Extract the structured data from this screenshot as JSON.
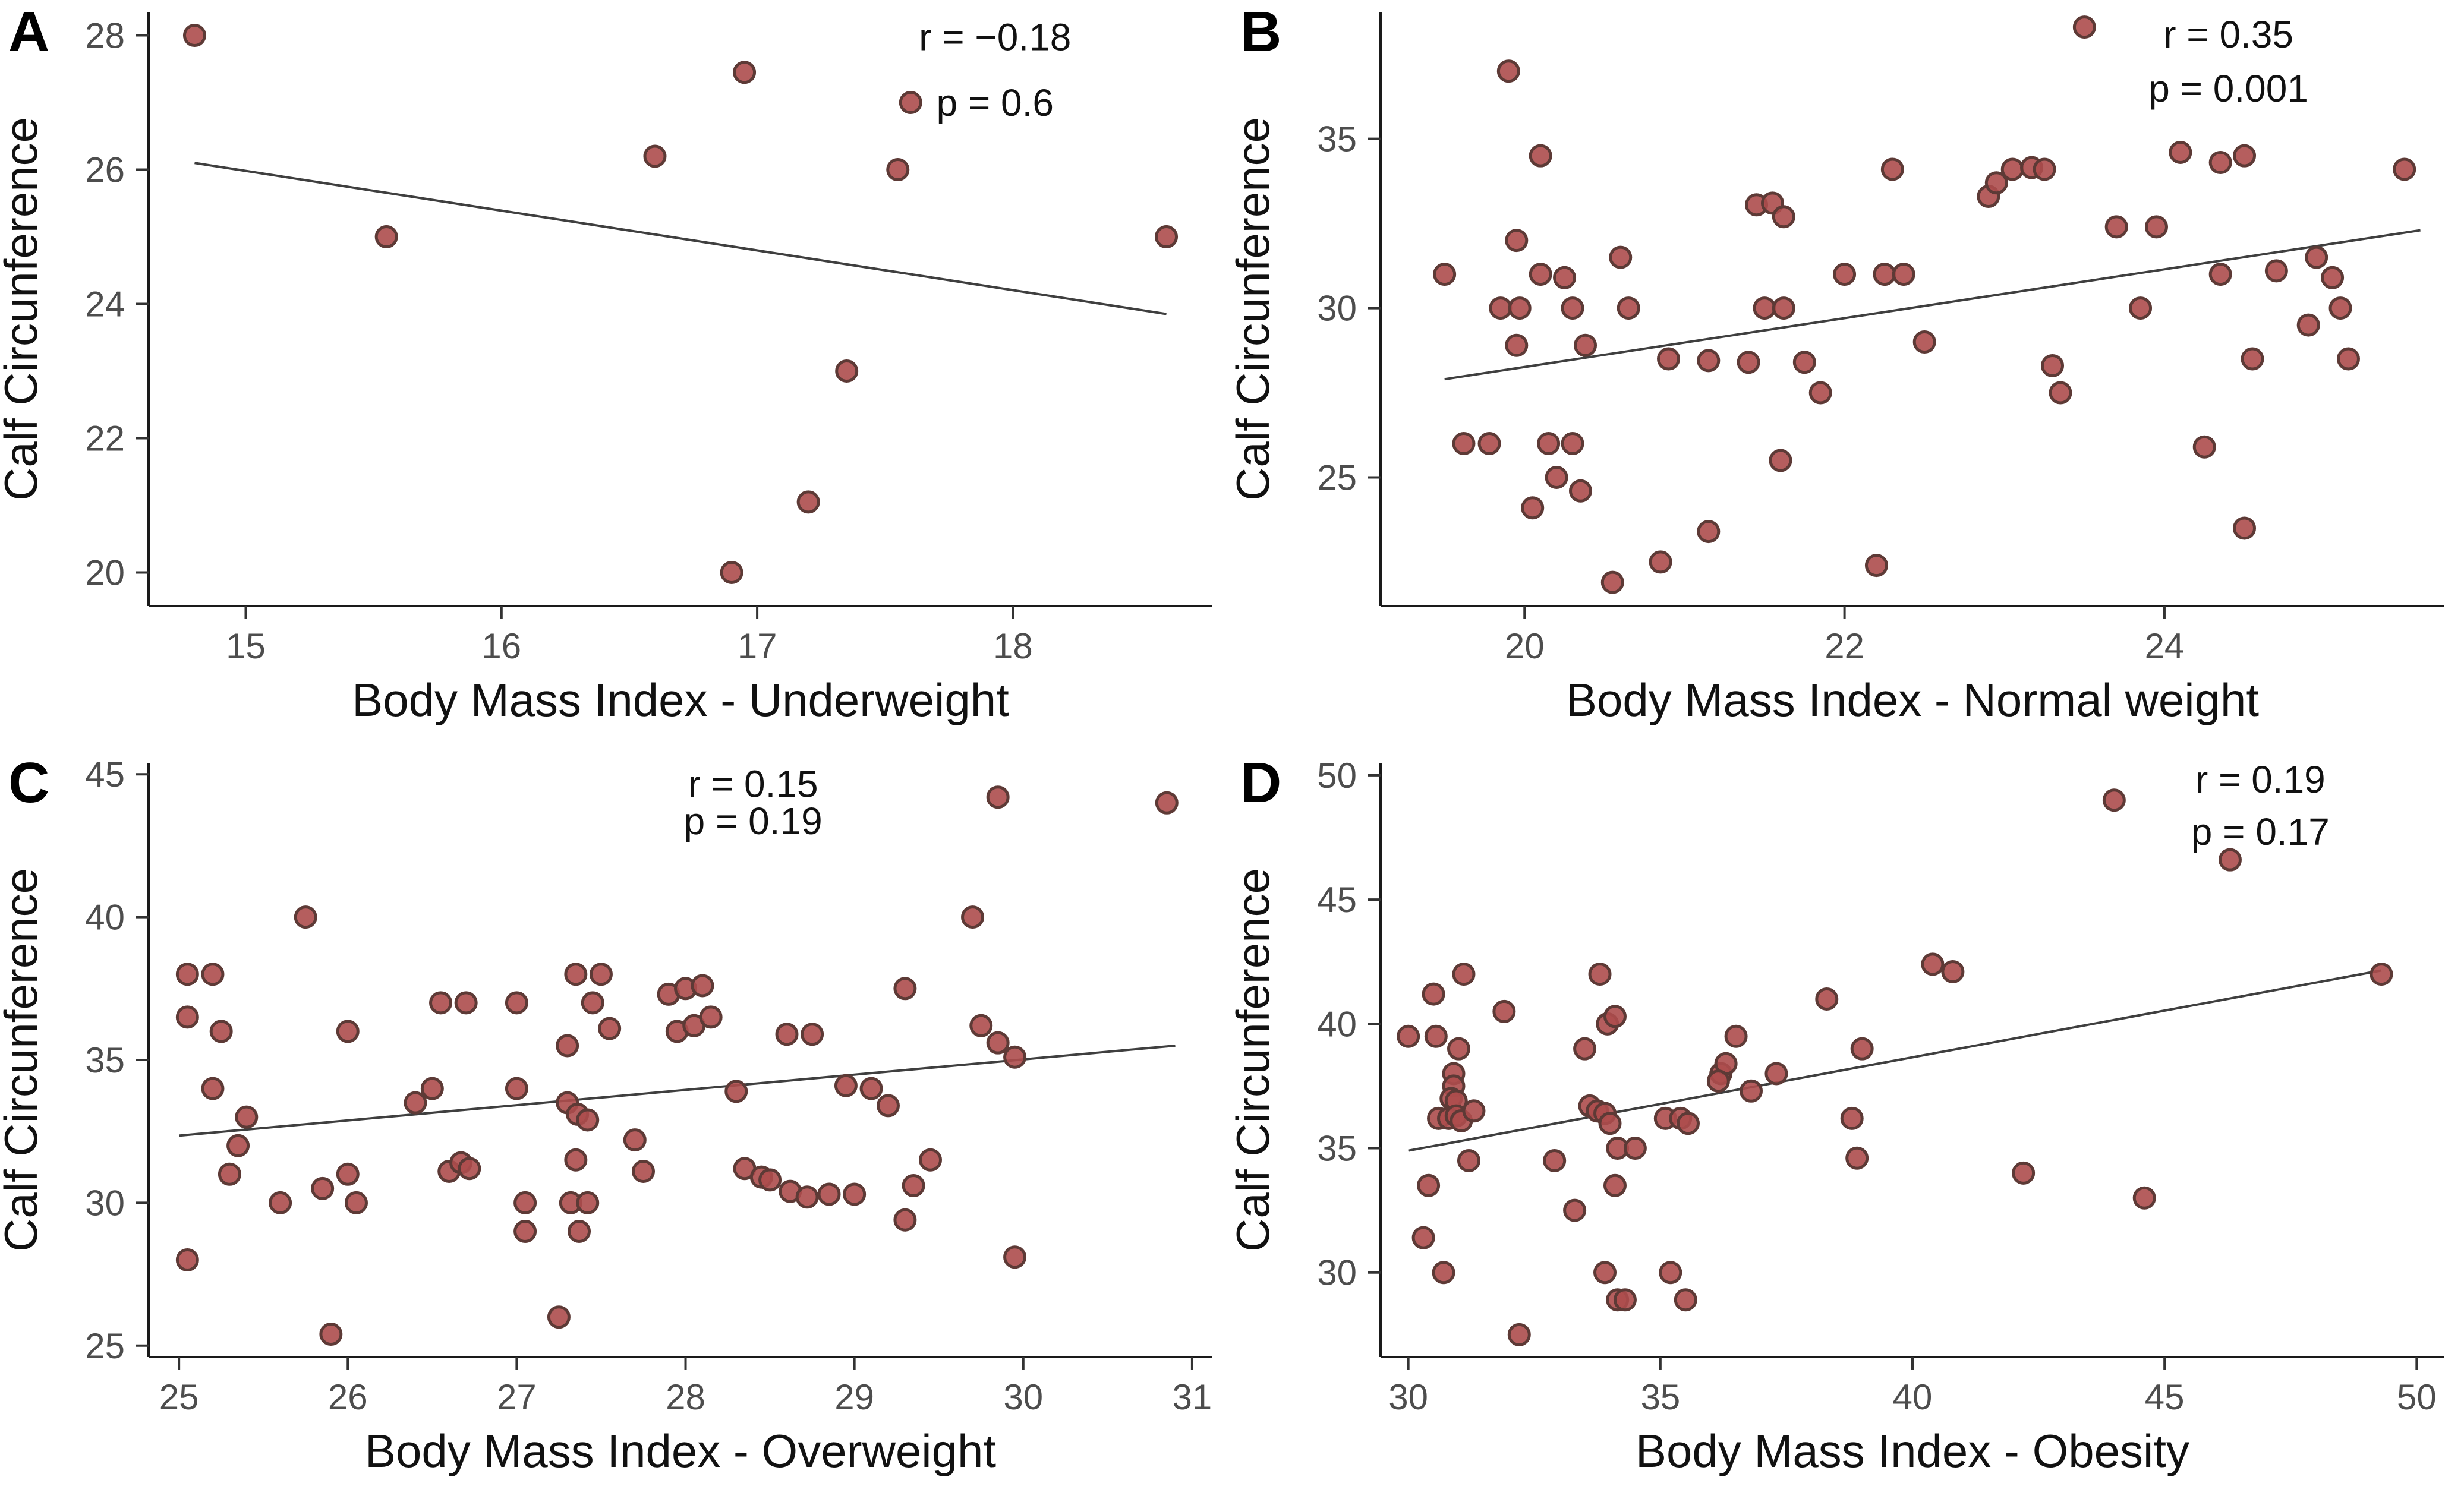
{
  "figure": {
    "background": "#ffffff",
    "ylabel_shared": "Calf Circunference"
  },
  "style": {
    "point_fill": "#ad4d4d",
    "point_stroke": "#5d3a36",
    "point_opacity": 0.9,
    "trend_color": "#3f3f3f",
    "axis_color": "#1a1a1a",
    "tick_color": "#333333",
    "tick_label_color": "#4d4d4d",
    "title_color": "#111111",
    "annotation_color": "#111111"
  },
  "chart_data": [
    {
      "id": "a",
      "type": "scatter",
      "panel_label": "A",
      "xlabel": "Body Mass Index - Underweight",
      "ylabel": "Calf Circunference",
      "annotation": {
        "r_label": "r = −0.18",
        "p_label": "p = 0.6",
        "x": 17.93,
        "y_r": 27.78,
        "y_p": 26.8
      },
      "xlim": [
        14.62,
        18.78
      ],
      "ylim": [
        19.5,
        28.35
      ],
      "xticks": [
        15,
        16,
        17,
        18
      ],
      "yticks": [
        20,
        22,
        24,
        26,
        28
      ],
      "trend": {
        "x1": 14.8,
        "y1": 26.1,
        "x2": 18.6,
        "y2": 23.85
      },
      "points": [
        [
          14.8,
          28
        ],
        [
          15.55,
          25
        ],
        [
          16.6,
          26.2
        ],
        [
          16.95,
          27.45
        ],
        [
          16.9,
          20
        ],
        [
          17.2,
          21.05
        ],
        [
          17.35,
          23
        ],
        [
          17.55,
          26
        ],
        [
          17.6,
          27
        ],
        [
          18.6,
          25
        ]
      ]
    },
    {
      "id": "b",
      "type": "scatter",
      "panel_label": "B",
      "xlabel": "Body Mass Index - Normal weight",
      "ylabel": "Calf Circunference",
      "annotation": {
        "r_label": "r = 0.35",
        "p_label": "p = 0.001",
        "x": 24.4,
        "y_r": 37.7,
        "y_p": 36.1
      },
      "xlim": [
        19.1,
        25.75
      ],
      "ylim": [
        21.2,
        38.75
      ],
      "xticks": [
        20,
        22,
        24
      ],
      "yticks": [
        25,
        30,
        35
      ],
      "trend": {
        "x1": 19.5,
        "y1": 27.9,
        "x2": 25.6,
        "y2": 32.3
      },
      "points": [
        [
          19.5,
          31
        ],
        [
          19.62,
          26
        ],
        [
          19.78,
          26
        ],
        [
          19.85,
          30
        ],
        [
          19.97,
          30
        ],
        [
          19.9,
          37
        ],
        [
          19.95,
          32
        ],
        [
          19.95,
          28.9
        ],
        [
          20.1,
          34.5
        ],
        [
          20.1,
          31
        ],
        [
          20.25,
          30.9
        ],
        [
          20.3,
          30
        ],
        [
          20.38,
          28.9
        ],
        [
          20.15,
          26
        ],
        [
          20.3,
          26
        ],
        [
          20.2,
          25
        ],
        [
          20.05,
          24.1
        ],
        [
          20.35,
          24.6
        ],
        [
          20.6,
          31.5
        ],
        [
          20.65,
          30
        ],
        [
          20.55,
          21.9
        ],
        [
          20.9,
          28.5
        ],
        [
          20.85,
          22.5
        ],
        [
          21.15,
          28.45
        ],
        [
          21.15,
          23.4
        ],
        [
          21.45,
          33.05
        ],
        [
          21.55,
          33.1
        ],
        [
          21.62,
          32.7
        ],
        [
          21.5,
          30
        ],
        [
          21.62,
          30
        ],
        [
          21.4,
          28.4
        ],
        [
          21.75,
          28.4
        ],
        [
          21.85,
          27.5
        ],
        [
          21.6,
          25.5
        ],
        [
          22.0,
          31
        ],
        [
          22.25,
          31
        ],
        [
          22.37,
          31
        ],
        [
          22.3,
          34.1
        ],
        [
          22.5,
          29
        ],
        [
          22.2,
          22.4
        ],
        [
          22.9,
          33.3
        ],
        [
          22.95,
          33.7
        ],
        [
          23.05,
          34.1
        ],
        [
          23.17,
          34.15
        ],
        [
          23.25,
          34.1
        ],
        [
          23.5,
          38.3
        ],
        [
          23.3,
          28.3
        ],
        [
          23.35,
          27.5
        ],
        [
          23.7,
          32.4
        ],
        [
          23.95,
          32.4
        ],
        [
          23.85,
          30
        ],
        [
          24.1,
          34.6
        ],
        [
          24.35,
          34.3
        ],
        [
          24.5,
          34.5
        ],
        [
          24.35,
          31
        ],
        [
          24.7,
          31.1
        ],
        [
          24.55,
          28.5
        ],
        [
          24.95,
          31.5
        ],
        [
          25.05,
          30.9
        ],
        [
          25.1,
          30
        ],
        [
          24.9,
          29.5
        ],
        [
          25.15,
          28.5
        ],
        [
          24.25,
          25.9
        ],
        [
          24.5,
          23.5
        ],
        [
          25.5,
          34.1
        ]
      ]
    },
    {
      "id": "c",
      "type": "scatter",
      "panel_label": "C",
      "xlabel": "Body Mass Index - Overweight",
      "ylabel": "Calf Circunference",
      "annotation": {
        "r_label": "r = 0.15",
        "p_label": "p = 0.19",
        "x": 28.4,
        "y_r": 44.2,
        "y_p": 42.9
      },
      "xlim": [
        24.82,
        31.12
      ],
      "ylim": [
        24.6,
        45.4
      ],
      "xticks": [
        25,
        26,
        27,
        28,
        29,
        30,
        31
      ],
      "yticks": [
        25,
        30,
        35,
        40,
        45
      ],
      "trend": {
        "x1": 25.0,
        "y1": 32.35,
        "x2": 30.9,
        "y2": 35.5
      },
      "points": [
        [
          25.05,
          38
        ],
        [
          25.2,
          38
        ],
        [
          25.05,
          36.5
        ],
        [
          25.25,
          36
        ],
        [
          25.2,
          34
        ],
        [
          25.4,
          33
        ],
        [
          25.35,
          32
        ],
        [
          25.3,
          31
        ],
        [
          25.6,
          30
        ],
        [
          25.05,
          28
        ],
        [
          25.75,
          40
        ],
        [
          25.85,
          30.5
        ],
        [
          25.9,
          25.4
        ],
        [
          26.0,
          36
        ],
        [
          26.0,
          31
        ],
        [
          26.05,
          30
        ],
        [
          26.4,
          33.5
        ],
        [
          26.5,
          34
        ],
        [
          26.55,
          37
        ],
        [
          26.7,
          37
        ],
        [
          26.6,
          31.1
        ],
        [
          26.67,
          31.4
        ],
        [
          26.72,
          31.2
        ],
        [
          27.0,
          37
        ],
        [
          27.0,
          34
        ],
        [
          27.05,
          30
        ],
        [
          27.05,
          29
        ],
        [
          27.25,
          26
        ],
        [
          27.3,
          35.5
        ],
        [
          27.35,
          38
        ],
        [
          27.5,
          38
        ],
        [
          27.45,
          37
        ],
        [
          27.55,
          36.1
        ],
        [
          27.3,
          33.5
        ],
        [
          27.36,
          33.1
        ],
        [
          27.42,
          32.9
        ],
        [
          27.35,
          31.5
        ],
        [
          27.32,
          30
        ],
        [
          27.42,
          30
        ],
        [
          27.37,
          29
        ],
        [
          27.7,
          32.2
        ],
        [
          27.75,
          31.1
        ],
        [
          27.9,
          37.3
        ],
        [
          28.0,
          37.5
        ],
        [
          28.1,
          37.6
        ],
        [
          27.95,
          36
        ],
        [
          28.05,
          36.2
        ],
        [
          28.15,
          36.5
        ],
        [
          28.3,
          33.9
        ],
        [
          28.35,
          31.2
        ],
        [
          28.45,
          30.9
        ],
        [
          28.6,
          35.9
        ],
        [
          28.75,
          35.9
        ],
        [
          28.5,
          30.8
        ],
        [
          28.62,
          30.4
        ],
        [
          28.72,
          30.2
        ],
        [
          28.85,
          30.3
        ],
        [
          29.0,
          30.3
        ],
        [
          28.95,
          34.1
        ],
        [
          29.1,
          34
        ],
        [
          29.2,
          33.4
        ],
        [
          29.3,
          37.5
        ],
        [
          29.35,
          30.6
        ],
        [
          29.45,
          31.5
        ],
        [
          29.3,
          29.4
        ],
        [
          29.7,
          40
        ],
        [
          29.85,
          44.2
        ],
        [
          29.75,
          36.2
        ],
        [
          29.85,
          35.6
        ],
        [
          29.95,
          35.1
        ],
        [
          29.95,
          28.1
        ],
        [
          30.85,
          44
        ]
      ]
    },
    {
      "id": "d",
      "type": "scatter",
      "panel_label": "D",
      "xlabel": "Body Mass Index - Obesity",
      "ylabel": "Calf Circunference",
      "annotation": {
        "r_label": "r = 0.19",
        "p_label": "p = 0.17",
        "x": 46.9,
        "y_r": 49.3,
        "y_p": 47.2
      },
      "xlim": [
        29.45,
        50.55
      ],
      "ylim": [
        26.6,
        50.5
      ],
      "xticks": [
        30,
        35,
        40,
        45,
        50
      ],
      "yticks": [
        30,
        35,
        40,
        45,
        50
      ],
      "trend": {
        "x1": 30.0,
        "y1": 34.9,
        "x2": 49.3,
        "y2": 42.15
      },
      "points": [
        [
          30.0,
          39.5
        ],
        [
          30.5,
          41.2
        ],
        [
          30.55,
          39.5
        ],
        [
          31.1,
          42
        ],
        [
          31.0,
          39
        ],
        [
          30.9,
          38
        ],
        [
          30.9,
          37.5
        ],
        [
          30.85,
          37
        ],
        [
          30.95,
          36.9
        ],
        [
          30.6,
          36.2
        ],
        [
          30.8,
          36.2
        ],
        [
          30.95,
          36.3
        ],
        [
          31.05,
          36.1
        ],
        [
          31.3,
          36.5
        ],
        [
          31.2,
          34.5
        ],
        [
          30.4,
          33.5
        ],
        [
          30.3,
          31.4
        ],
        [
          30.7,
          30
        ],
        [
          31.9,
          40.5
        ],
        [
          32.2,
          27.5
        ],
        [
          32.9,
          34.5
        ],
        [
          33.3,
          32.5
        ],
        [
          33.8,
          42
        ],
        [
          33.95,
          40
        ],
        [
          34.1,
          40.3
        ],
        [
          33.5,
          39
        ],
        [
          33.6,
          36.7
        ],
        [
          33.75,
          36.5
        ],
        [
          33.9,
          36.4
        ],
        [
          34.0,
          36
        ],
        [
          34.15,
          35
        ],
        [
          34.5,
          35
        ],
        [
          34.1,
          33.5
        ],
        [
          33.9,
          30
        ],
        [
          34.15,
          28.9
        ],
        [
          34.3,
          28.9
        ],
        [
          35.2,
          30
        ],
        [
          35.5,
          28.9
        ],
        [
          35.1,
          36.2
        ],
        [
          35.4,
          36.2
        ],
        [
          35.55,
          36
        ],
        [
          36.2,
          38
        ],
        [
          36.3,
          38.4
        ],
        [
          36.15,
          37.7
        ],
        [
          36.5,
          39.5
        ],
        [
          36.8,
          37.3
        ],
        [
          37.3,
          38
        ],
        [
          38.3,
          41
        ],
        [
          38.8,
          36.2
        ],
        [
          38.9,
          34.6
        ],
        [
          39.0,
          39
        ],
        [
          40.4,
          42.4
        ],
        [
          40.8,
          42.1
        ],
        [
          42.2,
          34
        ],
        [
          44.0,
          49
        ],
        [
          44.6,
          33
        ],
        [
          46.3,
          46.6
        ],
        [
          49.3,
          42
        ]
      ]
    }
  ]
}
